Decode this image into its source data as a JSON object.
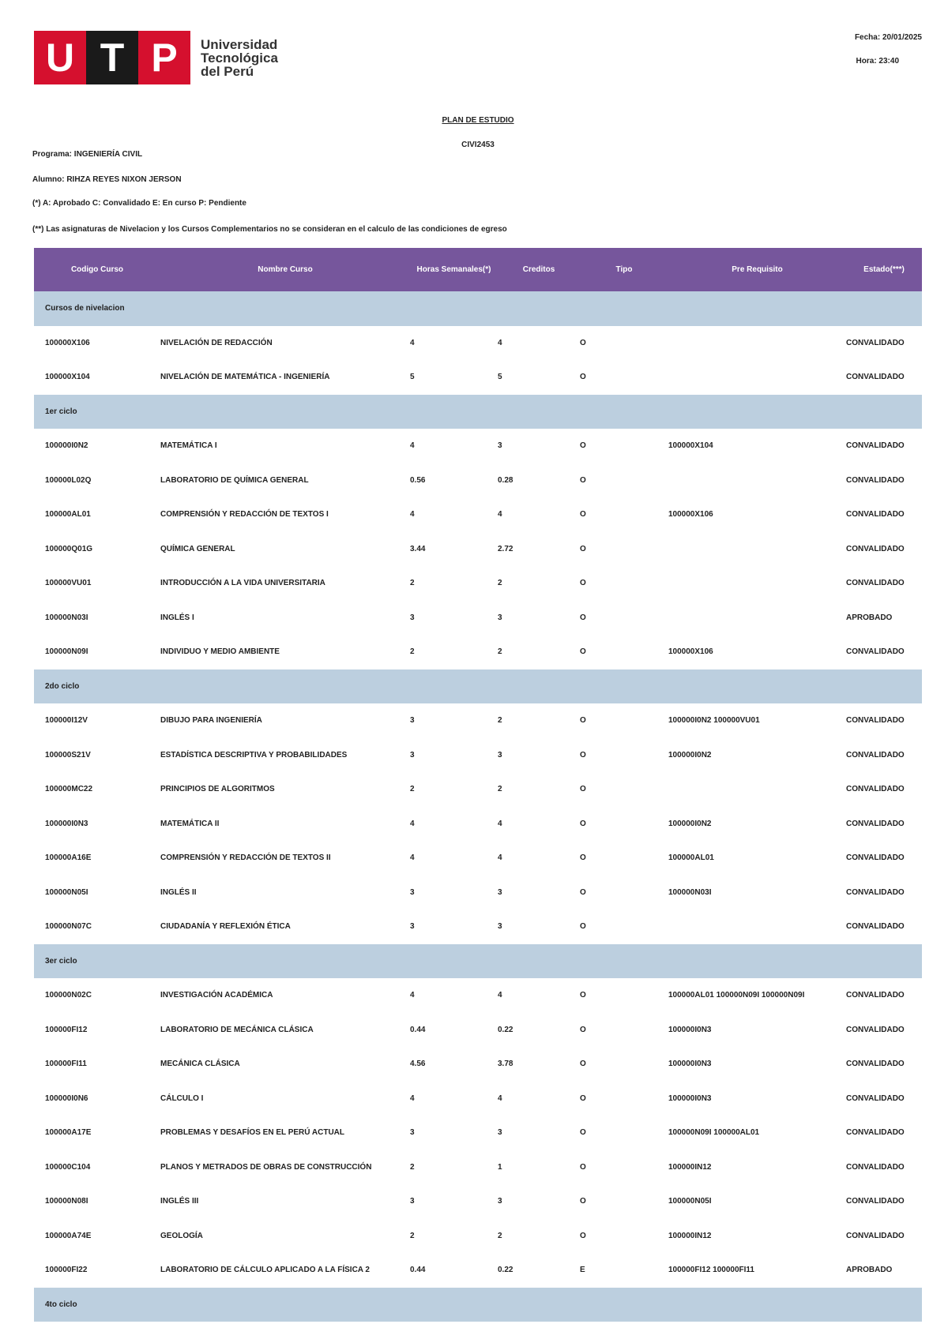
{
  "header": {
    "logo_letters": [
      "U",
      "T",
      "P"
    ],
    "institution": [
      "Universidad",
      "Tecnológica",
      "del Perú"
    ],
    "date": "Fecha: 20/01/2025",
    "time": "Hora: 23:40"
  },
  "document": {
    "title": "PLAN DE ESTUDIO",
    "code": "CIVI2453",
    "program": "Programa: INGENIERÍA CIVIL",
    "student": "Alumno: RIHZA REYES NIXON JERSON",
    "note_1": "(*) A: Aprobado C: Convalidado E: En curso P: Pendiente",
    "note_2": "(**) Las asignaturas de Nivelacion y los Cursos Complementarios no se consideran en el calculo de las condiciones de egreso"
  },
  "table": {
    "columns": [
      "Codigo Curso",
      "Nombre Curso",
      "Horas Semanales(*)",
      "Creditos",
      "Tipo",
      "Pre Requisito",
      "Estado(***)"
    ],
    "sections": [
      {
        "title": "Cursos de nivelacion",
        "rows": [
          [
            "100000X106",
            "NIVELACIÓN DE REDACCIÓN",
            "4",
            "4",
            "O",
            null,
            "CONVALIDADO"
          ],
          [
            "100000X104",
            "NIVELACIÓN DE MATEMÁTICA - INGENIERÍA",
            "5",
            "5",
            "O",
            null,
            "CONVALIDADO"
          ]
        ]
      },
      {
        "title": "1er ciclo",
        "rows": [
          [
            "100000I0N2",
            "MATEMÁTICA I",
            "4",
            "3",
            "O",
            "100000X104",
            "CONVALIDADO"
          ],
          [
            "100000L02Q",
            "LABORATORIO DE QUÍMICA GENERAL",
            "0.56",
            "0.28",
            "O",
            null,
            "CONVALIDADO"
          ],
          [
            "100000AL01",
            "COMPRENSIÓN Y REDACCIÓN DE TEXTOS I",
            "4",
            "4",
            "O",
            "100000X106",
            "CONVALIDADO"
          ],
          [
            "100000Q01G",
            "QUÍMICA GENERAL",
            "3.44",
            "2.72",
            "O",
            null,
            "CONVALIDADO"
          ],
          [
            "100000VU01",
            "INTRODUCCIÓN A LA VIDA UNIVERSITARIA",
            "2",
            "2",
            "O",
            null,
            "CONVALIDADO"
          ],
          [
            "100000N03I",
            "INGLÉS I",
            "3",
            "3",
            "O",
            null,
            "APROBADO"
          ],
          [
            "100000N09I",
            "INDIVIDUO Y MEDIO AMBIENTE",
            "2",
            "2",
            "O",
            "100000X106",
            "CONVALIDADO"
          ]
        ]
      },
      {
        "title": "2do ciclo",
        "rows": [
          [
            "100000I12V",
            "DIBUJO PARA INGENIERÍA",
            "3",
            "2",
            "O",
            "100000I0N2 100000VU01",
            "CONVALIDADO"
          ],
          [
            "100000S21V",
            "ESTADÍSTICA DESCRIPTIVA Y PROBABILIDADES",
            "3",
            "3",
            "O",
            "100000I0N2",
            "CONVALIDADO"
          ],
          [
            "100000MC22",
            "PRINCIPIOS DE ALGORITMOS",
            "2",
            "2",
            "O",
            null,
            "CONVALIDADO"
          ],
          [
            "100000I0N3",
            "MATEMÁTICA II",
            "4",
            "4",
            "O",
            "100000I0N2",
            "CONVALIDADO"
          ],
          [
            "100000A16E",
            "COMPRENSIÓN Y REDACCIÓN DE TEXTOS II",
            "4",
            "4",
            "O",
            "100000AL01",
            "CONVALIDADO"
          ],
          [
            "100000N05I",
            "INGLÉS II",
            "3",
            "3",
            "O",
            "100000N03I",
            "CONVALIDADO"
          ],
          [
            "100000N07C",
            "CIUDADANÍA Y REFLEXIÓN ÉTICA",
            "3",
            "3",
            "O",
            null,
            "CONVALIDADO"
          ]
        ]
      },
      {
        "title": "3er ciclo",
        "rows": [
          [
            "100000N02C",
            "INVESTIGACIÓN ACADÉMICA",
            "4",
            "4",
            "O",
            "100000AL01 100000N09I 100000N09I",
            "CONVALIDADO"
          ],
          [
            "100000FI12",
            "LABORATORIO DE MECÁNICA CLÁSICA",
            "0.44",
            "0.22",
            "O",
            "100000I0N3",
            "CONVALIDADO"
          ],
          [
            "100000FI11",
            "MECÁNICA CLÁSICA",
            "4.56",
            "3.78",
            "O",
            "100000I0N3",
            "CONVALIDADO"
          ],
          [
            "100000I0N6",
            "CÁLCULO I",
            "4",
            "4",
            "O",
            "100000I0N3",
            "CONVALIDADO"
          ],
          [
            "100000A17E",
            "PROBLEMAS Y DESAFÍOS EN EL PERÚ ACTUAL",
            "3",
            "3",
            "O",
            "100000N09I 100000AL01",
            "CONVALIDADO"
          ],
          [
            "100000C104",
            "PLANOS Y METRADOS DE OBRAS DE CONSTRUCCIÓN",
            "2",
            "1",
            "O",
            "100000IN12",
            "CONVALIDADO"
          ],
          [
            "100000N08I",
            "INGLÉS III",
            "3",
            "3",
            "O",
            "100000N05I",
            "CONVALIDADO"
          ],
          [
            "100000A74E",
            "GEOLOGÍA",
            "2",
            "2",
            "O",
            "100000IN12",
            "CONVALIDADO"
          ],
          [
            "100000FI22",
            "LABORATORIO DE CÁLCULO APLICADO A LA FÍSICA 2",
            "0.44",
            "0.22",
            "E",
            "100000FI12 100000FI11",
            "APROBADO"
          ]
        ]
      },
      {
        "title": "4to ciclo",
        "rows": []
      }
    ]
  }
}
